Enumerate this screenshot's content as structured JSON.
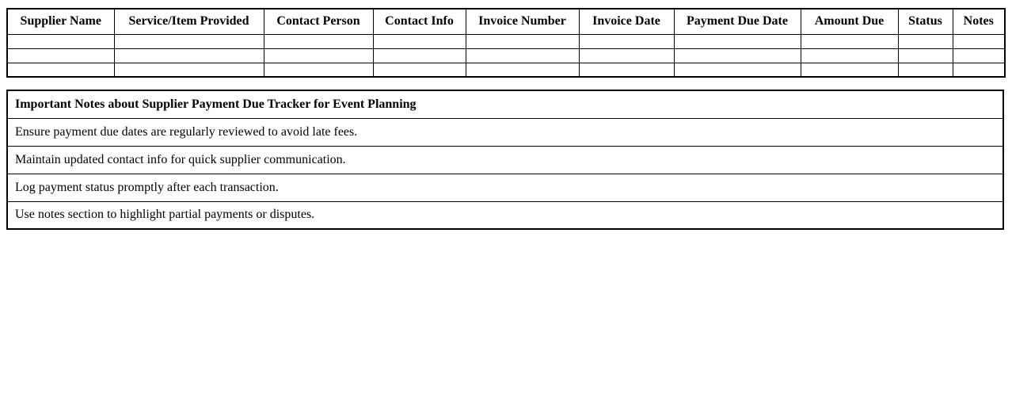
{
  "document": {
    "background_color": "#ffffff",
    "text_color": "#000000",
    "border_color": "#000000"
  },
  "tracker_table": {
    "column_headers": [
      "Supplier Name",
      "Service/Item Provided",
      "Contact Person",
      "Contact Info",
      "Invoice Number",
      "Invoice Date",
      "Payment Due Date",
      "Amount Due",
      "Status",
      "Notes"
    ],
    "empty_rows": 3,
    "empty_cell_value": ""
  },
  "notes_table": {
    "title": "Important Notes about Supplier Payment Due Tracker for Event Planning",
    "notes": [
      "Ensure payment due dates are regularly reviewed to avoid late fees.",
      "Maintain updated contact info for quick supplier communication.",
      "Log payment status promptly after each transaction.",
      "Use notes section to highlight partial payments or disputes."
    ]
  }
}
